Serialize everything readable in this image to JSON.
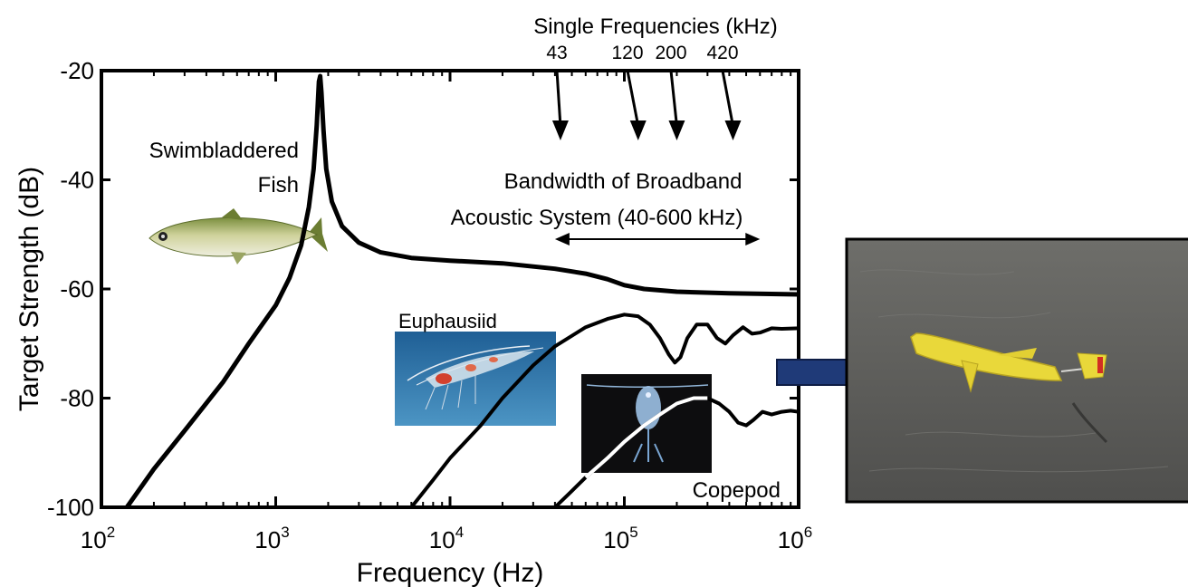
{
  "chart_data": {
    "type": "line",
    "title": "",
    "xlabel": "Frequency (Hz)",
    "ylabel": "Target Strength (dB)",
    "xscale": "log",
    "xlim": [
      100,
      1000000
    ],
    "ylim": [
      -100,
      -20
    ],
    "xticks": [
      {
        "value": 100,
        "base": "10",
        "exp": "2"
      },
      {
        "value": 1000,
        "base": "10",
        "exp": "3"
      },
      {
        "value": 10000,
        "base": "10",
        "exp": "4"
      },
      {
        "value": 100000,
        "base": "10",
        "exp": "5"
      },
      {
        "value": 1000000,
        "base": "10",
        "exp": "6"
      }
    ],
    "yticks": [
      {
        "value": -20,
        "label": "-20"
      },
      {
        "value": -40,
        "label": "-40"
      },
      {
        "value": -60,
        "label": "-60"
      },
      {
        "value": -80,
        "label": "-80"
      },
      {
        "value": -100,
        "label": "-100"
      }
    ],
    "grid": false,
    "series": [
      {
        "name": "Swimbladdered Fish",
        "color": "#000000",
        "points": [
          [
            140,
            -100
          ],
          [
            200,
            -93
          ],
          [
            300,
            -86
          ],
          [
            500,
            -77
          ],
          [
            700,
            -70
          ],
          [
            1000,
            -63
          ],
          [
            1200,
            -58
          ],
          [
            1400,
            -52
          ],
          [
            1550,
            -45
          ],
          [
            1650,
            -38
          ],
          [
            1720,
            -30
          ],
          [
            1770,
            -22
          ],
          [
            1800,
            -21
          ],
          [
            1830,
            -24
          ],
          [
            1880,
            -31
          ],
          [
            1950,
            -38
          ],
          [
            2100,
            -44
          ],
          [
            2400,
            -48.5
          ],
          [
            3000,
            -51.5
          ],
          [
            4000,
            -53.3
          ],
          [
            6000,
            -54.3
          ],
          [
            10000,
            -54.8
          ],
          [
            20000,
            -55.3
          ],
          [
            40000,
            -56.3
          ],
          [
            60000,
            -57.2
          ],
          [
            80000,
            -58.2
          ],
          [
            100000,
            -59.3
          ],
          [
            130000,
            -60
          ],
          [
            200000,
            -60.5
          ],
          [
            400000,
            -60.8
          ],
          [
            1000000,
            -61
          ]
        ]
      },
      {
        "name": "Euphausiid",
        "color": "#000000",
        "points": [
          [
            6000,
            -100
          ],
          [
            8000,
            -95
          ],
          [
            10000,
            -91
          ],
          [
            15000,
            -85
          ],
          [
            20000,
            -80
          ],
          [
            30000,
            -74
          ],
          [
            40000,
            -70.5
          ],
          [
            60000,
            -67
          ],
          [
            80000,
            -65.5
          ],
          [
            100000,
            -64.7
          ],
          [
            120000,
            -65
          ],
          [
            140000,
            -66.5
          ],
          [
            160000,
            -69
          ],
          [
            180000,
            -72
          ],
          [
            195000,
            -73.5
          ],
          [
            210000,
            -72.5
          ],
          [
            230000,
            -69
          ],
          [
            260000,
            -66.5
          ],
          [
            300000,
            -66.5
          ],
          [
            340000,
            -69
          ],
          [
            380000,
            -70
          ],
          [
            420000,
            -68.5
          ],
          [
            480000,
            -67
          ],
          [
            540000,
            -68.2
          ],
          [
            600000,
            -68
          ],
          [
            700000,
            -67.2
          ],
          [
            800000,
            -67.3
          ],
          [
            1000000,
            -67.2
          ]
        ]
      },
      {
        "name": "Copepod",
        "color": "#000000",
        "points": [
          [
            40000,
            -100
          ],
          [
            50000,
            -97
          ],
          [
            60000,
            -94.5
          ],
          [
            80000,
            -91
          ],
          [
            100000,
            -88
          ],
          [
            130000,
            -85
          ],
          [
            160000,
            -83
          ],
          [
            200000,
            -81
          ],
          [
            250000,
            -80
          ],
          [
            300000,
            -80
          ],
          [
            350000,
            -81
          ],
          [
            400000,
            -82.5
          ],
          [
            450000,
            -84.5
          ],
          [
            500000,
            -85
          ],
          [
            550000,
            -84
          ],
          [
            620000,
            -82.5
          ],
          [
            700000,
            -83
          ],
          [
            800000,
            -82.5
          ],
          [
            900000,
            -82.3
          ],
          [
            1000000,
            -82.5
          ]
        ]
      }
    ],
    "annotations": {
      "single_freq_title": "Single Frequencies (kHz)",
      "single_freqs": [
        {
          "label": "43",
          "value": 43000
        },
        {
          "label": "120",
          "value": 120000
        },
        {
          "label": "200",
          "value": 200000
        },
        {
          "label": "420",
          "value": 420000
        }
      ],
      "bandwidth_line1": "Bandwidth of Broadband",
      "bandwidth_line2": "Acoustic System (40-600 kHz)",
      "bandwidth_range": [
        40000,
        600000
      ],
      "fish_line1": "Swimbladdered",
      "fish_line2": "Fish",
      "euphausiid": "Euphausiid",
      "copepod": "Copepod"
    }
  },
  "photo_colors": {
    "water": "#5b5b58",
    "glider": "#e9d83a",
    "arrow": "#1f3a78",
    "krill_bg": "#2f78ad",
    "copepod_bg": "#0d0d0f"
  }
}
